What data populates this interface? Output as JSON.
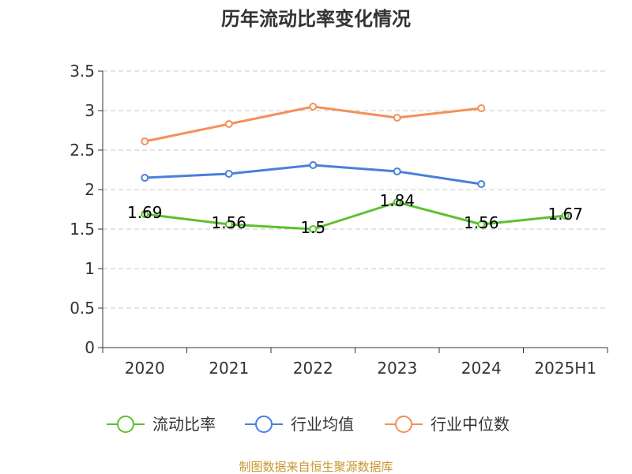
{
  "chart_data": {
    "type": "line",
    "title": "历年流动比率变化情况",
    "source": "制图数据来自恒生聚源数据库",
    "categories": [
      "2020",
      "2021",
      "2022",
      "2023",
      "2024",
      "2025H1"
    ],
    "ylim": [
      0,
      3.5
    ],
    "yticks": [
      "0",
      "0.5",
      "1",
      "1.5",
      "2",
      "2.5",
      "3",
      "3.5"
    ],
    "grid": true,
    "legend_position": "bottom",
    "series": [
      {
        "name": "流动比率",
        "color": "#5cc12f",
        "values": [
          1.69,
          1.56,
          1.5,
          1.84,
          1.56,
          1.67
        ],
        "labels": [
          "1.69",
          "1.56",
          "1.5",
          "1.84",
          "1.56",
          "1.67"
        ]
      },
      {
        "name": "行业均值",
        "color": "#4a7fdc",
        "values": [
          2.15,
          2.2,
          2.31,
          2.23,
          2.07,
          null
        ]
      },
      {
        "name": "行业中位数",
        "color": "#f5905a",
        "values": [
          2.61,
          2.83,
          3.05,
          2.91,
          3.03,
          null
        ]
      }
    ]
  }
}
